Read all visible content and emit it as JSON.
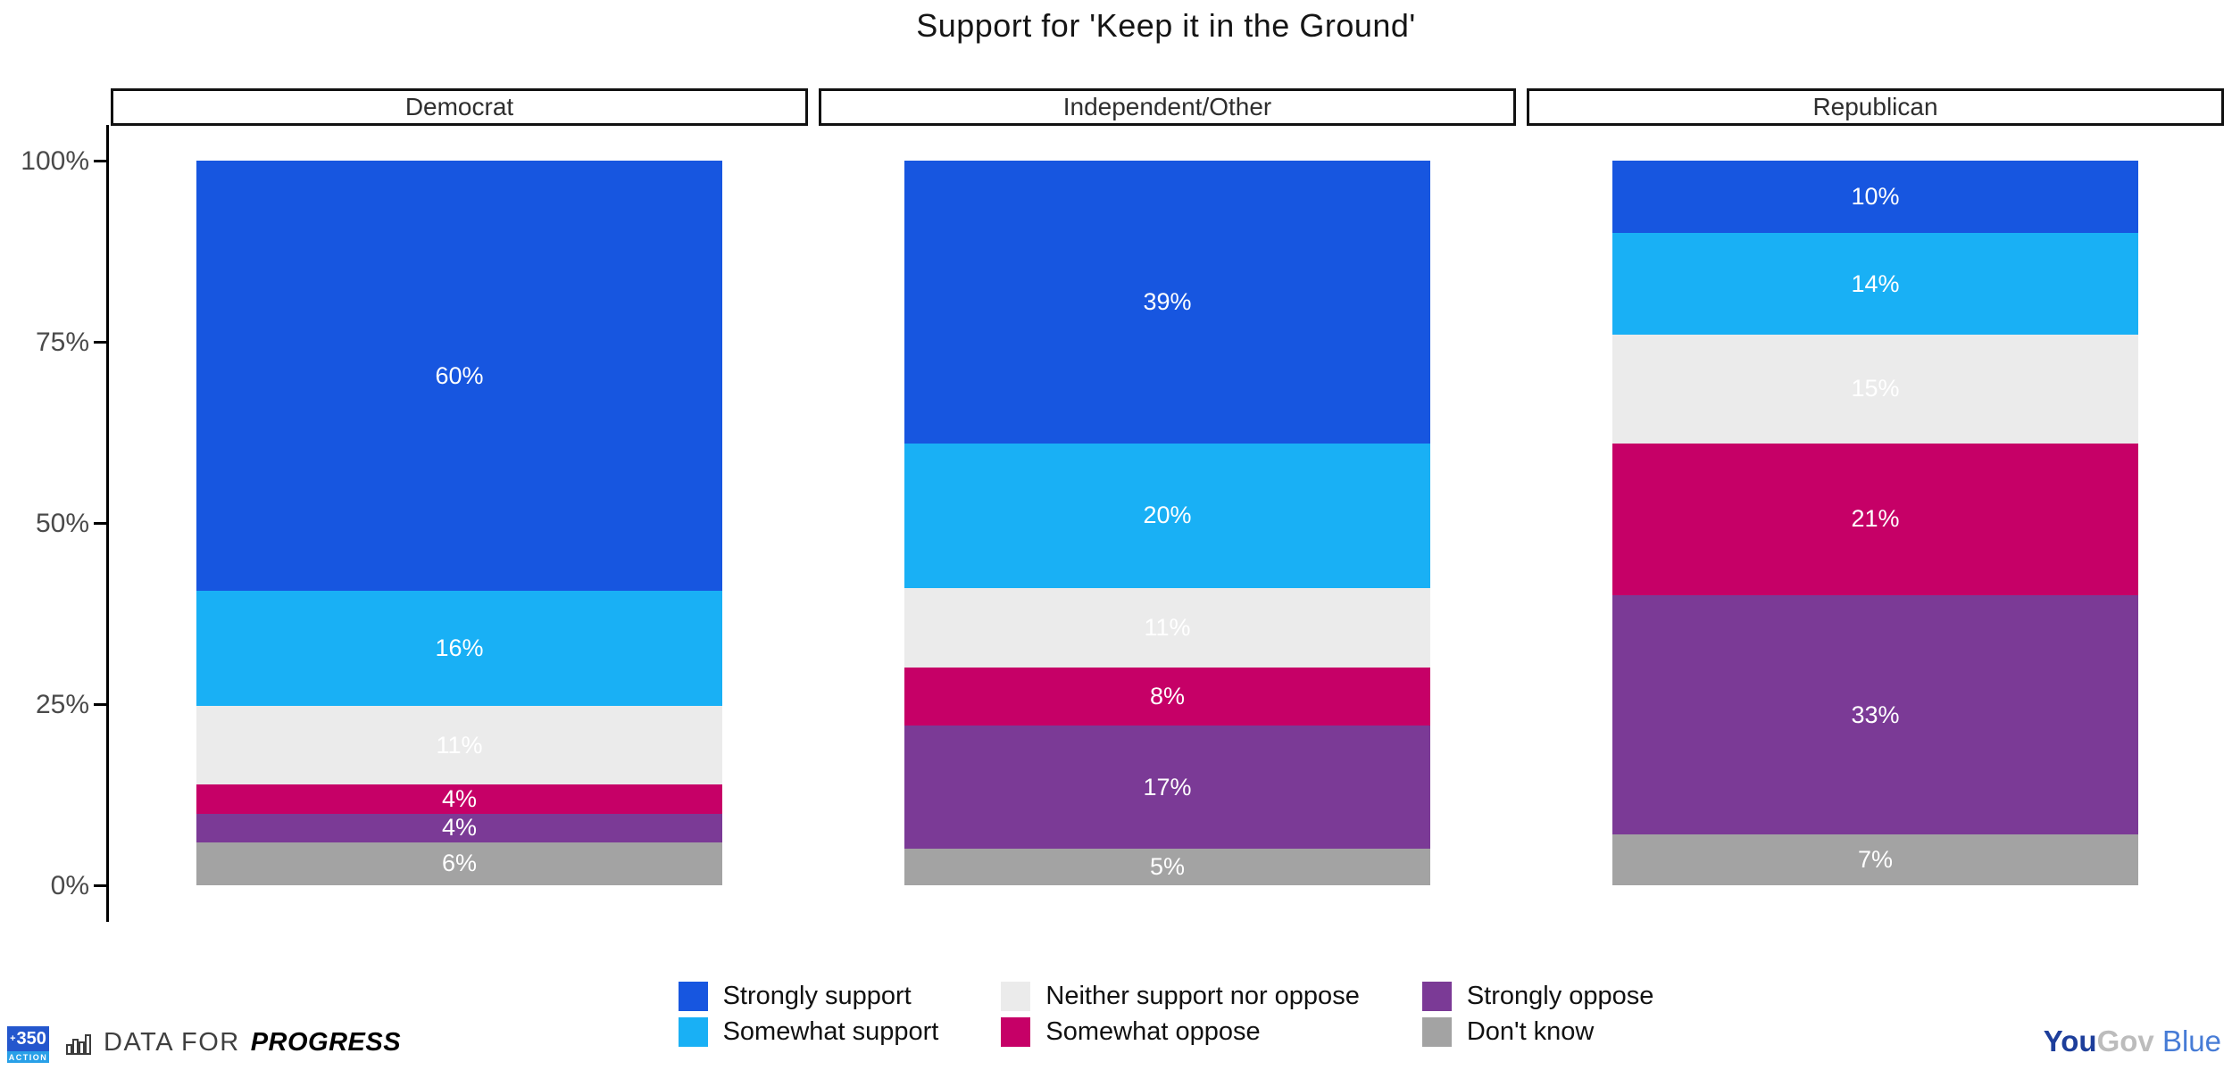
{
  "title": "Support for 'Keep it in the Ground'",
  "chart_data": {
    "type": "bar",
    "stacked": true,
    "normalized_to_100": true,
    "title": "Support for 'Keep it in the Ground'",
    "categories": [
      "Democrat",
      "Independent/Other",
      "Republican"
    ],
    "series": [
      {
        "name": "Strongly support",
        "color": "#1756e0",
        "values": [
          60,
          39,
          10
        ]
      },
      {
        "name": "Somewhat support",
        "color": "#19b0f5",
        "values": [
          16,
          20,
          14
        ]
      },
      {
        "name": "Neither support nor oppose",
        "color": "#ebebeb",
        "values": [
          11,
          11,
          15
        ]
      },
      {
        "name": "Somewhat oppose",
        "color": "#c60067",
        "values": [
          4,
          8,
          21
        ]
      },
      {
        "name": "Strongly oppose",
        "color": "#7b3a96",
        "values": [
          4,
          17,
          33
        ]
      },
      {
        "name": "Don't know",
        "color": "#a3a3a3",
        "values": [
          6,
          5,
          7
        ]
      }
    ],
    "value_suffix": "%",
    "ylim": [
      0,
      100
    ],
    "yticks": [
      "100%",
      "75%",
      "50%",
      "25%",
      "0%"
    ],
    "grid": false,
    "legend_position": "bottom"
  },
  "footer": {
    "logo_350": {
      "mark": "+",
      "number": "350",
      "word": "ACTION"
    },
    "dfp": {
      "prefix": "DATA FOR",
      "name": "PROGRESS"
    },
    "yougov": {
      "part1": "You",
      "part2": "Gov",
      "part3": "Blue"
    }
  }
}
